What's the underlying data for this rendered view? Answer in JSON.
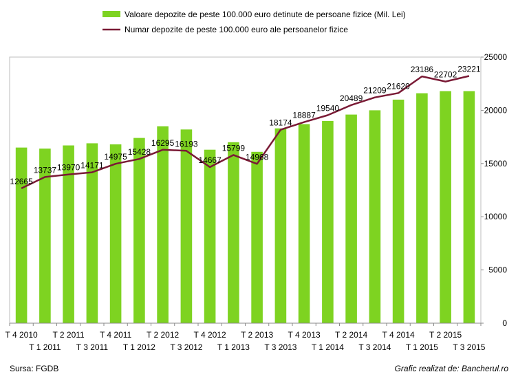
{
  "chart_data": {
    "type": "bar",
    "categories": [
      "T 4 2010",
      "T 1 2011",
      "T 2 2011",
      "T 3 2011",
      "T 4 2011",
      "T 1 2012",
      "T 2 2012",
      "T 3 2012",
      "T 4 2012",
      "T 1 2013",
      "T 2 2013",
      "T 3 2013",
      "T 4 2013",
      "T 1 2014",
      "T 2 2014",
      "T 3 2014",
      "T 4 2014",
      "T 1 2015",
      "T 2 2015",
      "T 3 2015"
    ],
    "series": [
      {
        "name": "Valoare depozite de peste 100.000 euro detinute de persoane fizice (Mil. Lei)",
        "type": "bar",
        "color": "#7ed321",
        "values": [
          16500,
          16400,
          16700,
          16900,
          16800,
          17400,
          18500,
          18200,
          16300,
          17000,
          16100,
          18300,
          18700,
          19000,
          19600,
          20000,
          21000,
          21600,
          21800,
          21800
        ]
      },
      {
        "name": "Numar depozite de peste 100.000 euro ale persoanelor fizice",
        "type": "line",
        "color": "#7a1a35",
        "values": [
          12665,
          13737,
          13970,
          14171,
          14975,
          15428,
          16295,
          16193,
          14667,
          15799,
          14968,
          18174,
          18887,
          19540,
          20489,
          21209,
          21620,
          23186,
          22702,
          23221
        ]
      }
    ],
    "ylim": [
      0,
      25000
    ],
    "yticks": [
      "0",
      "5000",
      "10000",
      "15000",
      "20000",
      "25000"
    ],
    "y_axis_side": "right",
    "grid": false,
    "legend_position": "top"
  },
  "footer": {
    "source": "Sursa: FGDB",
    "credit": "Grafic realizat de: Bancherul.ro"
  }
}
